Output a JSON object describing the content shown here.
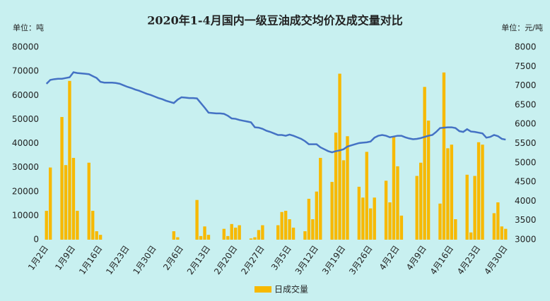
{
  "chart_data": {
    "type": "bar_line",
    "title": "2020年1-4月国内一级豆油成交均价及成交量对比",
    "y_unit": "单位：吨",
    "y2_unit": "单位：元/吨",
    "categories": [
      "1月2日",
      null,
      null,
      null,
      null,
      null,
      null,
      "1月9日",
      null,
      null,
      null,
      null,
      null,
      null,
      "1月16日",
      null,
      null,
      null,
      null,
      null,
      null,
      "1月23日",
      null,
      null,
      null,
      null,
      null,
      null,
      "1月30日",
      null,
      null,
      null,
      null,
      null,
      null,
      "2月6日",
      null,
      null,
      null,
      null,
      null,
      null,
      "2月13日",
      null,
      null,
      null,
      null,
      null,
      null,
      "2月20日",
      null,
      null,
      null,
      null,
      null,
      null,
      "2月27日",
      null,
      null,
      null,
      null,
      null,
      null,
      "3月5日",
      null,
      null,
      null,
      null,
      null,
      null,
      "3月12日",
      null,
      null,
      null,
      null,
      null,
      null,
      "3月19日",
      null,
      null,
      null,
      null,
      null,
      null,
      "3月26日",
      null,
      null,
      null,
      null,
      null,
      null,
      "4月2日",
      null,
      null,
      null,
      null,
      null,
      null,
      "4月9日",
      null,
      null,
      null,
      null,
      null,
      null,
      "4月16日",
      null,
      null,
      null,
      null,
      null,
      null,
      "4月23日",
      null,
      null,
      null,
      null,
      null,
      null,
      "4月30日"
    ],
    "series": [
      {
        "name": "日成交量",
        "kind": "bar",
        "color": "#f7b900",
        "values": [
          12000,
          30000,
          0,
          0,
          51000,
          31000,
          66000,
          34000,
          12000,
          0,
          0,
          32000,
          12000,
          3500,
          2000,
          0,
          0,
          0,
          0,
          0,
          0,
          0,
          0,
          0,
          0,
          0,
          0,
          0,
          0,
          0,
          0,
          0,
          0,
          3500,
          1000,
          0,
          0,
          0,
          0,
          16500,
          1500,
          5500,
          2000,
          0,
          0,
          0,
          4500,
          1500,
          6500,
          5000,
          6000,
          0,
          0,
          500,
          1000,
          4000,
          6000,
          0,
          0,
          0,
          6000,
          11500,
          12000,
          8500,
          5000,
          0,
          0,
          3500,
          17000,
          8500,
          20000,
          34000,
          0,
          0,
          24000,
          44500,
          69000,
          33000,
          43000,
          0,
          0,
          22000,
          17500,
          36500,
          13000,
          17500,
          0,
          0,
          24500,
          15500,
          43000,
          30500,
          10000,
          0,
          0,
          0,
          26500,
          32000,
          63500,
          49500,
          0,
          0,
          15000,
          69500,
          38000,
          39500,
          8500,
          0,
          0,
          27000,
          3000,
          26500,
          40500,
          39500,
          0,
          0,
          11000,
          15500,
          5500,
          4500
        ]
      },
      {
        "kind": "line",
        "axis": "y2",
        "color": "#4472c4",
        "values": [
          7050,
          7150,
          7170,
          7180,
          7180,
          7200,
          7220,
          7350,
          7330,
          7320,
          7310,
          7300,
          7250,
          7200,
          7100,
          7080,
          7080,
          7080,
          7070,
          7050,
          7010,
          6970,
          6940,
          6900,
          6870,
          6830,
          6790,
          6760,
          6720,
          6680,
          6650,
          6610,
          6580,
          6550,
          6640,
          6700,
          6690,
          6680,
          6680,
          6670,
          6550,
          6430,
          6300,
          6290,
          6280,
          6280,
          6270,
          6220,
          6150,
          6140,
          6110,
          6090,
          6070,
          6050,
          5920,
          5910,
          5880,
          5830,
          5800,
          5760,
          5720,
          5720,
          5700,
          5730,
          5700,
          5660,
          5620,
          5560,
          5480,
          5480,
          5480,
          5400,
          5350,
          5300,
          5270,
          5300,
          5320,
          5350,
          5420,
          5450,
          5480,
          5510,
          5520,
          5530,
          5550,
          5650,
          5700,
          5720,
          5700,
          5660,
          5680,
          5700,
          5700,
          5660,
          5630,
          5610,
          5620,
          5640,
          5670,
          5700,
          5720,
          5800,
          5900,
          5910,
          5920,
          5920,
          5900,
          5820,
          5800,
          5870,
          5810,
          5800,
          5780,
          5760,
          5650,
          5670,
          5720,
          5690,
          5620,
          5600
        ]
      }
    ],
    "ylim": [
      0,
      80000
    ],
    "yticks": [
      0,
      10000,
      20000,
      30000,
      40000,
      50000,
      60000,
      70000,
      80000
    ],
    "y2lim": [
      3000,
      8000
    ],
    "y2ticks": [
      3000,
      3500,
      4000,
      4500,
      5000,
      5500,
      6000,
      6500,
      7000,
      7500,
      8000
    ],
    "grid": false,
    "legend": "bottom"
  }
}
